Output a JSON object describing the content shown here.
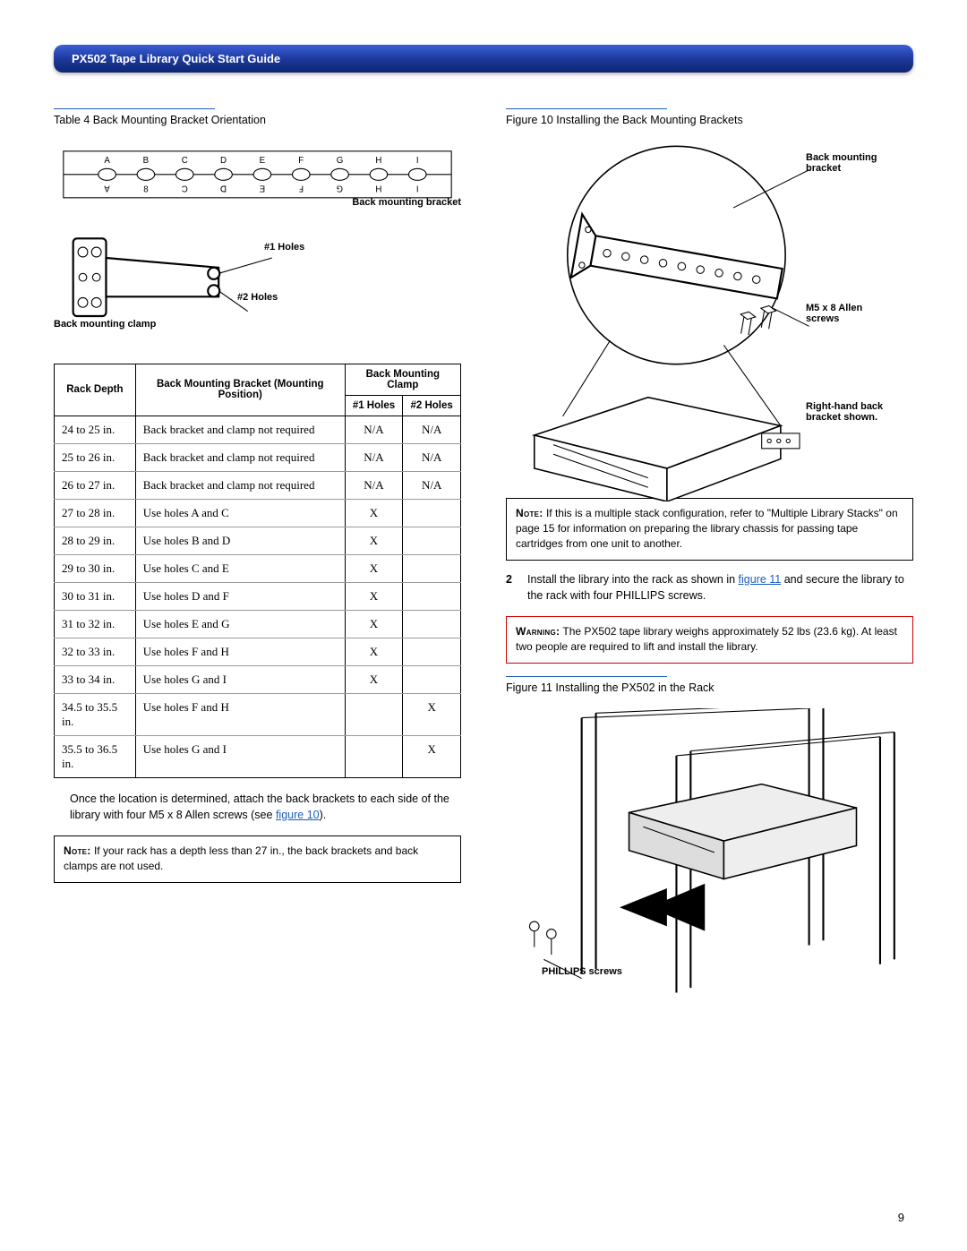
{
  "header": {
    "title": "PX502 Tape Library Quick Start Guide"
  },
  "page_number": "9",
  "left": {
    "table4_caption": "Table 4   Back Mounting Bracket Orientation",
    "diagram": {
      "rail_letters_top": [
        "A",
        "B",
        "C",
        "D",
        "E",
        "F",
        "G",
        "H",
        "I"
      ],
      "rail_letters_bottom": [
        "∀",
        "8",
        "Ɔ",
        "ᗡ",
        "Ǝ",
        "Ⅎ",
        "⅁",
        "H",
        "I"
      ],
      "bracket_label": "Back mounting bracket",
      "holes1_label": "#1 Holes",
      "holes2_label": "#2 Holes",
      "clamp_label": "Back mounting clamp"
    },
    "table": {
      "headers": {
        "depth": "Rack Depth",
        "bracket": "Back Mounting Bracket (Mounting Position)",
        "clamp": "Back Mounting Clamp",
        "h1": "#1 Holes",
        "h2": "#2 Holes"
      },
      "rows": [
        {
          "d": "24 to 25 in.",
          "b": "Back bracket and clamp not required",
          "h1": "N/A",
          "h2": "N/A"
        },
        {
          "d": "25 to 26 in.",
          "b": "Back bracket and clamp not required",
          "h1": "N/A",
          "h2": "N/A"
        },
        {
          "d": "26 to 27 in.",
          "b": "Back bracket and clamp not required",
          "h1": "N/A",
          "h2": "N/A"
        },
        {
          "d": "27 to 28 in.",
          "b": "Use holes A and C",
          "h1": "X",
          "h2": ""
        },
        {
          "d": "28 to 29 in.",
          "b": "Use holes B and D",
          "h1": "X",
          "h2": ""
        },
        {
          "d": "29 to 30 in.",
          "b": "Use holes C and E",
          "h1": "X",
          "h2": ""
        },
        {
          "d": "30 to 31 in.",
          "b": "Use holes D and F",
          "h1": "X",
          "h2": ""
        },
        {
          "d": "31 to 32 in.",
          "b": "Use holes E and G",
          "h1": "X",
          "h2": ""
        },
        {
          "d": "32 to 33 in.",
          "b": "Use holes F and H",
          "h1": "X",
          "h2": ""
        },
        {
          "d": "33 to 34 in.",
          "b": "Use holes G and I",
          "h1": "X",
          "h2": ""
        },
        {
          "d": "34.5 to 35.5 in.",
          "b": "Use holes F and H",
          "h1": "",
          "h2": "X"
        },
        {
          "d": "35.5 to 36.5 in.",
          "b": "Use holes G and I",
          "h1": "",
          "h2": "X"
        }
      ]
    },
    "para1_a": "Once the location is determined, attach the back brackets to each side of the library with four M5 x 8 Allen screws (see ",
    "para1_link": "figure 10",
    "para1_b": ").",
    "note_label": "Note:",
    "note_text": "  If your rack has a depth less than 27 in., the back brackets and back clamps are not used."
  },
  "right": {
    "fig10_caption": "Figure 10  Installing the Back Mounting Brackets",
    "fig10_labels": {
      "bracket": "Back mounting bracket",
      "screws": "M5 x 8 Allen screws",
      "rhs": "Right-hand back bracket shown."
    },
    "note_label": "Note:",
    "note_text": "  If this is a multiple stack configuration, refer to \"Multiple Library Stacks\" on page 15 for information on preparing the library chassis for passing tape cartridges from one unit to another.",
    "step2_num": "2",
    "step2_a": "Install the library into the rack as shown in ",
    "step2_link": "figure 11",
    "step2_b": " and secure the library to the rack with four PHILLIPS screws.",
    "warn_label": "Warning:",
    "warn_text": "  The PX502 tape library weighs approximately 52 lbs (23.6 kg). At least two people are required to lift and install the library.",
    "fig11_caption": "Figure 11  Installing the PX502 in the Rack",
    "fig11_label": "PHILLIPS screws"
  },
  "colors": {
    "accent": "#1c5fbf",
    "warn_border": "#c00"
  }
}
